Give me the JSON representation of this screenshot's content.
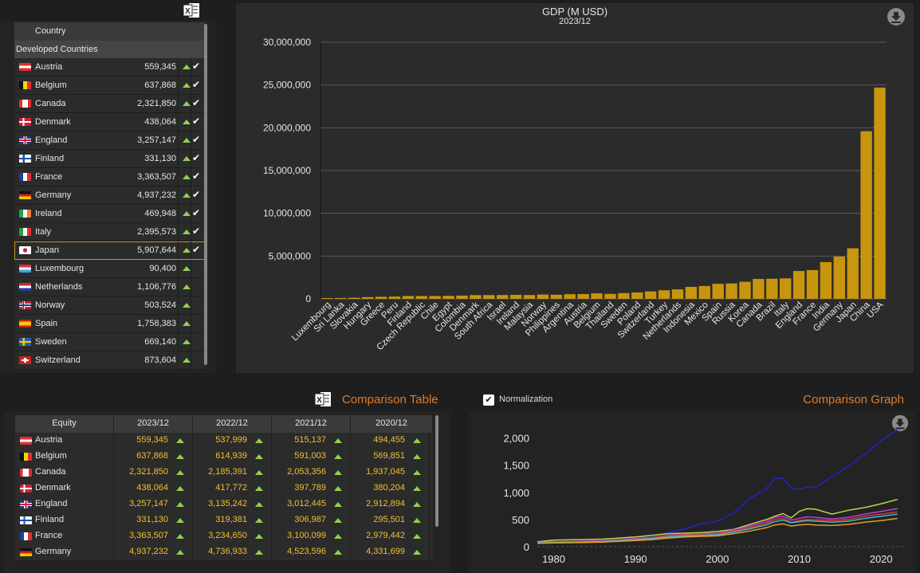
{
  "country_panel": {
    "header_country": "Country",
    "group_label": "Developed Countries",
    "rows": [
      {
        "name": "Austria",
        "value": "559,345",
        "flag": "austria",
        "checked": true
      },
      {
        "name": "Belgium",
        "value": "637,868",
        "flag": "belgium",
        "checked": true
      },
      {
        "name": "Canada",
        "value": "2,321,850",
        "flag": "canada",
        "checked": true
      },
      {
        "name": "Denmark",
        "value": "438,064",
        "flag": "denmark",
        "checked": true
      },
      {
        "name": "England",
        "value": "3,257,147",
        "flag": "uk",
        "checked": true
      },
      {
        "name": "Finland",
        "value": "331,130",
        "flag": "finland",
        "checked": true
      },
      {
        "name": "France",
        "value": "3,363,507",
        "flag": "france",
        "checked": true
      },
      {
        "name": "Germany",
        "value": "4,937,232",
        "flag": "germany",
        "checked": true
      },
      {
        "name": "Ireland",
        "value": "469,948",
        "flag": "ireland",
        "checked": true
      },
      {
        "name": "Italy",
        "value": "2,395,573",
        "flag": "italy",
        "checked": true
      },
      {
        "name": "Japan",
        "value": "5,907,644",
        "flag": "japan",
        "checked": true
      },
      {
        "name": "Luxembourg",
        "value": "90,400",
        "flag": "luxembourg",
        "checked": false
      },
      {
        "name": "Netherlands",
        "value": "1,106,776",
        "flag": "netherlands",
        "checked": false
      },
      {
        "name": "Norway",
        "value": "503,524",
        "flag": "norway",
        "checked": false
      },
      {
        "name": "Spain",
        "value": "1,758,383",
        "flag": "spain",
        "checked": false
      },
      {
        "name": "Sweden",
        "value": "669,140",
        "flag": "sweden",
        "checked": false
      },
      {
        "name": "Switzerland",
        "value": "873,604",
        "flag": "switzerland",
        "checked": false
      }
    ],
    "selected": "Japan"
  },
  "colors": {
    "bar": "#c8950e",
    "accent": "#e07b27",
    "up_arrow": "#8fd14f",
    "value_yellow": "#f0c030"
  },
  "icons": {
    "export": "excel-icon",
    "download": "download-icon"
  },
  "chart_data": [
    {
      "type": "bar",
      "title": "GDP (M USD)",
      "subtitle": "2023/12",
      "categories": [
        "Luxembourg",
        "Sri Lanka",
        "Slovakia",
        "Hungary",
        "Greece",
        "Peru",
        "Finland",
        "Czech Republic",
        "Chile",
        "Egypt",
        "Colombia",
        "Denmark",
        "South Africa",
        "Israel",
        "Ireland",
        "Malaysia",
        "Norway",
        "Philippines",
        "Argentina",
        "Austria",
        "Belgium",
        "Thailand",
        "Sweden",
        "Poland",
        "Switzerland",
        "Turkey",
        "Netherlands",
        "Indonesia",
        "Mexico",
        "Spain",
        "Russia",
        "Korea",
        "Canada",
        "Brazil",
        "Italy",
        "England",
        "France",
        "India",
        "Germany",
        "Japan",
        "China",
        "USA"
      ],
      "values": [
        90400,
        100000,
        130000,
        200000,
        240000,
        270000,
        331130,
        330000,
        330000,
        350000,
        380000,
        438064,
        440000,
        450000,
        469948,
        450000,
        503524,
        480000,
        550000,
        559345,
        637868,
        580000,
        669140,
        750000,
        873604,
        1000000,
        1106776,
        1400000,
        1500000,
        1758383,
        1800000,
        2000000,
        2321850,
        2350000,
        2395573,
        3257147,
        3363507,
        4300000,
        4937232,
        5907644,
        19600000,
        24700000
      ],
      "yticks": [
        "0",
        "5,000,000",
        "10,000,000",
        "15,000,000",
        "20,000,000",
        "25,000,000",
        "30,000,000"
      ],
      "ylim": [
        0,
        30000000
      ],
      "grid": true
    },
    {
      "type": "line",
      "title": "Comparison Graph",
      "xticks": [
        "1980",
        "1990",
        "2000",
        "2010",
        "2020"
      ],
      "yticks": [
        "0",
        "500",
        "1,000",
        "1,500",
        "2,000"
      ],
      "xlim": [
        1978,
        2023
      ],
      "ylim": [
        0,
        2200
      ],
      "x": [
        1978,
        1980,
        1983,
        1986,
        1988,
        1990,
        1992,
        1994,
        1996,
        1998,
        2000,
        2002,
        2004,
        2006,
        2007,
        2008,
        2009,
        2010,
        2011,
        2012,
        2014,
        2016,
        2018,
        2020,
        2022
      ],
      "series": [
        {
          "color": "#2222cc",
          "values": [
            110,
            90,
            85,
            95,
            130,
            160,
            210,
            260,
            330,
            420,
            470,
            620,
            890,
            1070,
            1260,
            1260,
            1080,
            1050,
            1100,
            1090,
            1290,
            1480,
            1700,
            1950,
            2150
          ]
        },
        {
          "color": "#b8d84a",
          "values": [
            90,
            120,
            130,
            140,
            160,
            180,
            210,
            240,
            250,
            260,
            280,
            320,
            410,
            500,
            560,
            610,
            530,
            650,
            700,
            690,
            600,
            670,
            720,
            790,
            870
          ]
        },
        {
          "color": "#c23ecc",
          "values": [
            80,
            90,
            100,
            110,
            130,
            150,
            170,
            210,
            230,
            240,
            250,
            310,
            380,
            460,
            540,
            560,
            490,
            520,
            550,
            540,
            510,
            540,
            600,
            650,
            700
          ]
        },
        {
          "color": "#d43c3c",
          "values": [
            75,
            80,
            90,
            100,
            120,
            140,
            165,
            200,
            220,
            230,
            240,
            290,
            350,
            430,
            500,
            520,
            450,
            480,
            500,
            495,
            480,
            500,
            560,
            600,
            640
          ]
        },
        {
          "color": "#3cb8c8",
          "values": [
            70,
            75,
            85,
            95,
            110,
            130,
            150,
            180,
            200,
            210,
            220,
            270,
            330,
            400,
            460,
            490,
            440,
            460,
            480,
            470,
            450,
            470,
            520,
            560,
            600
          ]
        },
        {
          "color": "#e0a020",
          "values": [
            60,
            70,
            75,
            85,
            100,
            115,
            130,
            160,
            180,
            190,
            200,
            240,
            290,
            350,
            400,
            420,
            380,
            400,
            410,
            400,
            390,
            410,
            450,
            480,
            520
          ]
        }
      ]
    }
  ],
  "normalization_label": "Normalization",
  "comparison_graph_title": "Comparison Graph",
  "comparison_table": {
    "title": "Comparison Table",
    "headers": [
      "Equity",
      "2023/12",
      "2022/12",
      "2021/12",
      "2020/12"
    ],
    "rows": [
      {
        "name": "Austria",
        "flag": "austria",
        "vals": [
          "559,345",
          "537,999",
          "515,137",
          "494,455"
        ]
      },
      {
        "name": "Belgium",
        "flag": "belgium",
        "vals": [
          "637,868",
          "614,939",
          "591,003",
          "569,851"
        ]
      },
      {
        "name": "Canada",
        "flag": "canada",
        "vals": [
          "2,321,850",
          "2,185,391",
          "2,053,356",
          "1,937,045"
        ]
      },
      {
        "name": "Denmark",
        "flag": "denmark",
        "vals": [
          "438,064",
          "417,772",
          "397,789",
          "380,204"
        ]
      },
      {
        "name": "England",
        "flag": "uk",
        "vals": [
          "3,257,147",
          "3,135,242",
          "3,012,445",
          "2,912,894"
        ]
      },
      {
        "name": "Finland",
        "flag": "finland",
        "vals": [
          "331,130",
          "319,381",
          "306,987",
          "295,501"
        ]
      },
      {
        "name": "France",
        "flag": "france",
        "vals": [
          "3,363,507",
          "3,234,650",
          "3,100,099",
          "2,979,442"
        ]
      },
      {
        "name": "Germany",
        "flag": "germany",
        "vals": [
          "4,937,232",
          "4,736,933",
          "4,523,596",
          "4,331,699"
        ]
      }
    ]
  }
}
